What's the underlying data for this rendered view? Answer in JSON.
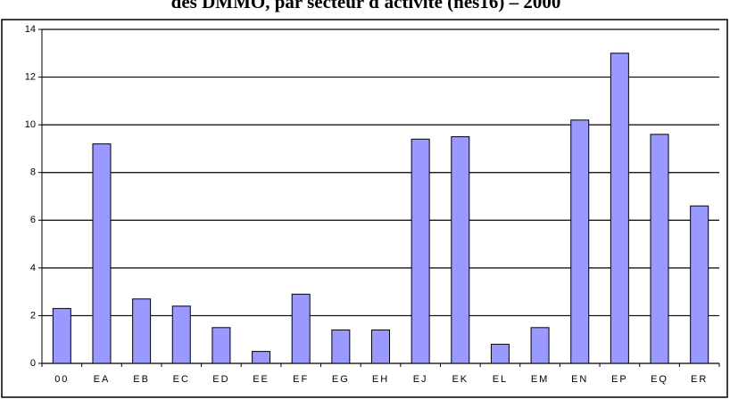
{
  "chart_data": {
    "type": "bar",
    "title": "des DMMO, par secteur d'activité (nes16) – 2000",
    "categories": [
      "00",
      "EA",
      "EB",
      "EC",
      "ED",
      "EE",
      "EF",
      "EG",
      "EH",
      "EJ",
      "EK",
      "EL",
      "EM",
      "EN",
      "EP",
      "EQ",
      "ER"
    ],
    "values": [
      2.3,
      9.2,
      2.7,
      2.4,
      1.5,
      0.5,
      2.9,
      1.4,
      1.4,
      9.4,
      9.5,
      0.8,
      1.5,
      10.2,
      13.0,
      9.6,
      6.6
    ],
    "color": "#9999ff",
    "ylim": [
      0,
      14
    ],
    "yticks": [
      0,
      2,
      4,
      6,
      8,
      10,
      12,
      14
    ],
    "grid": true
  }
}
